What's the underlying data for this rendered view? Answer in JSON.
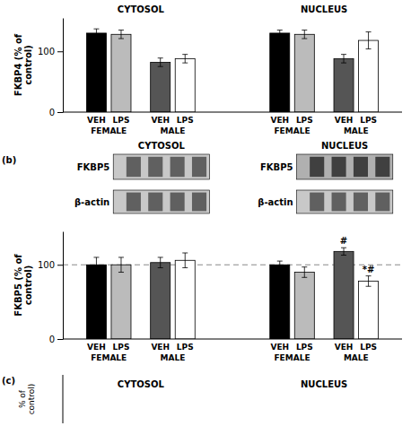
{
  "chart_data": [
    {
      "type": "bar",
      "section_labels": [
        "CYTOSOL",
        "NUCLEUS"
      ],
      "categories": [
        "FEMALE",
        "MALE",
        "FEMALE",
        "MALE"
      ],
      "series": [
        {
          "name": "VEH",
          "values": [
            130,
            82,
            130,
            88
          ],
          "errors": [
            7,
            7,
            5,
            7
          ],
          "colors": [
            "#000000",
            "#555555",
            "#000000",
            "#555555"
          ]
        },
        {
          "name": "LPS",
          "values": [
            128,
            88,
            128,
            118
          ],
          "errors": [
            7,
            7,
            7,
            14
          ],
          "colors": [
            "#bbbbbb",
            "#ffffff",
            "#bbbbbb",
            "#ffffff"
          ]
        }
      ],
      "y_label": "FKBP4 (% of\ncontrol)",
      "ylim": [
        0,
        155
      ],
      "yticks": [
        0,
        100
      ]
    },
    {
      "type": "blot",
      "panel_label": "(b)",
      "section_labels": [
        "CYTOSOL",
        "NUCLEUS"
      ],
      "row_labels": [
        "FKBP5",
        "β-actin"
      ]
    },
    {
      "type": "bar",
      "categories": [
        "FEMALE",
        "MALE",
        "FEMALE",
        "MALE"
      ],
      "series": [
        {
          "name": "VEH",
          "values": [
            100,
            103,
            100,
            118
          ],
          "errors": [
            10,
            7,
            5,
            5
          ],
          "colors": [
            "#000000",
            "#555555",
            "#000000",
            "#555555"
          ]
        },
        {
          "name": "LPS",
          "values": [
            100,
            106,
            90,
            78
          ],
          "errors": [
            10,
            10,
            7,
            7
          ],
          "colors": [
            "#bbbbbb",
            "#ffffff",
            "#bbbbbb",
            "#ffffff"
          ]
        }
      ],
      "y_label": "FKBP5 (% of\ncontrol)",
      "ylim": [
        0,
        145
      ],
      "yticks": [
        0,
        100
      ],
      "reference_line": 100,
      "annotations": [
        {
          "text": "#",
          "category": 3,
          "series": 0
        },
        {
          "text": "*#",
          "category": 3,
          "series": 1
        }
      ]
    },
    {
      "type": "stub",
      "panel_label": "(c)",
      "section_labels": [
        "CYTOSOL",
        "NUCLEUS"
      ],
      "y_label": "% of\ncontrol)"
    }
  ]
}
